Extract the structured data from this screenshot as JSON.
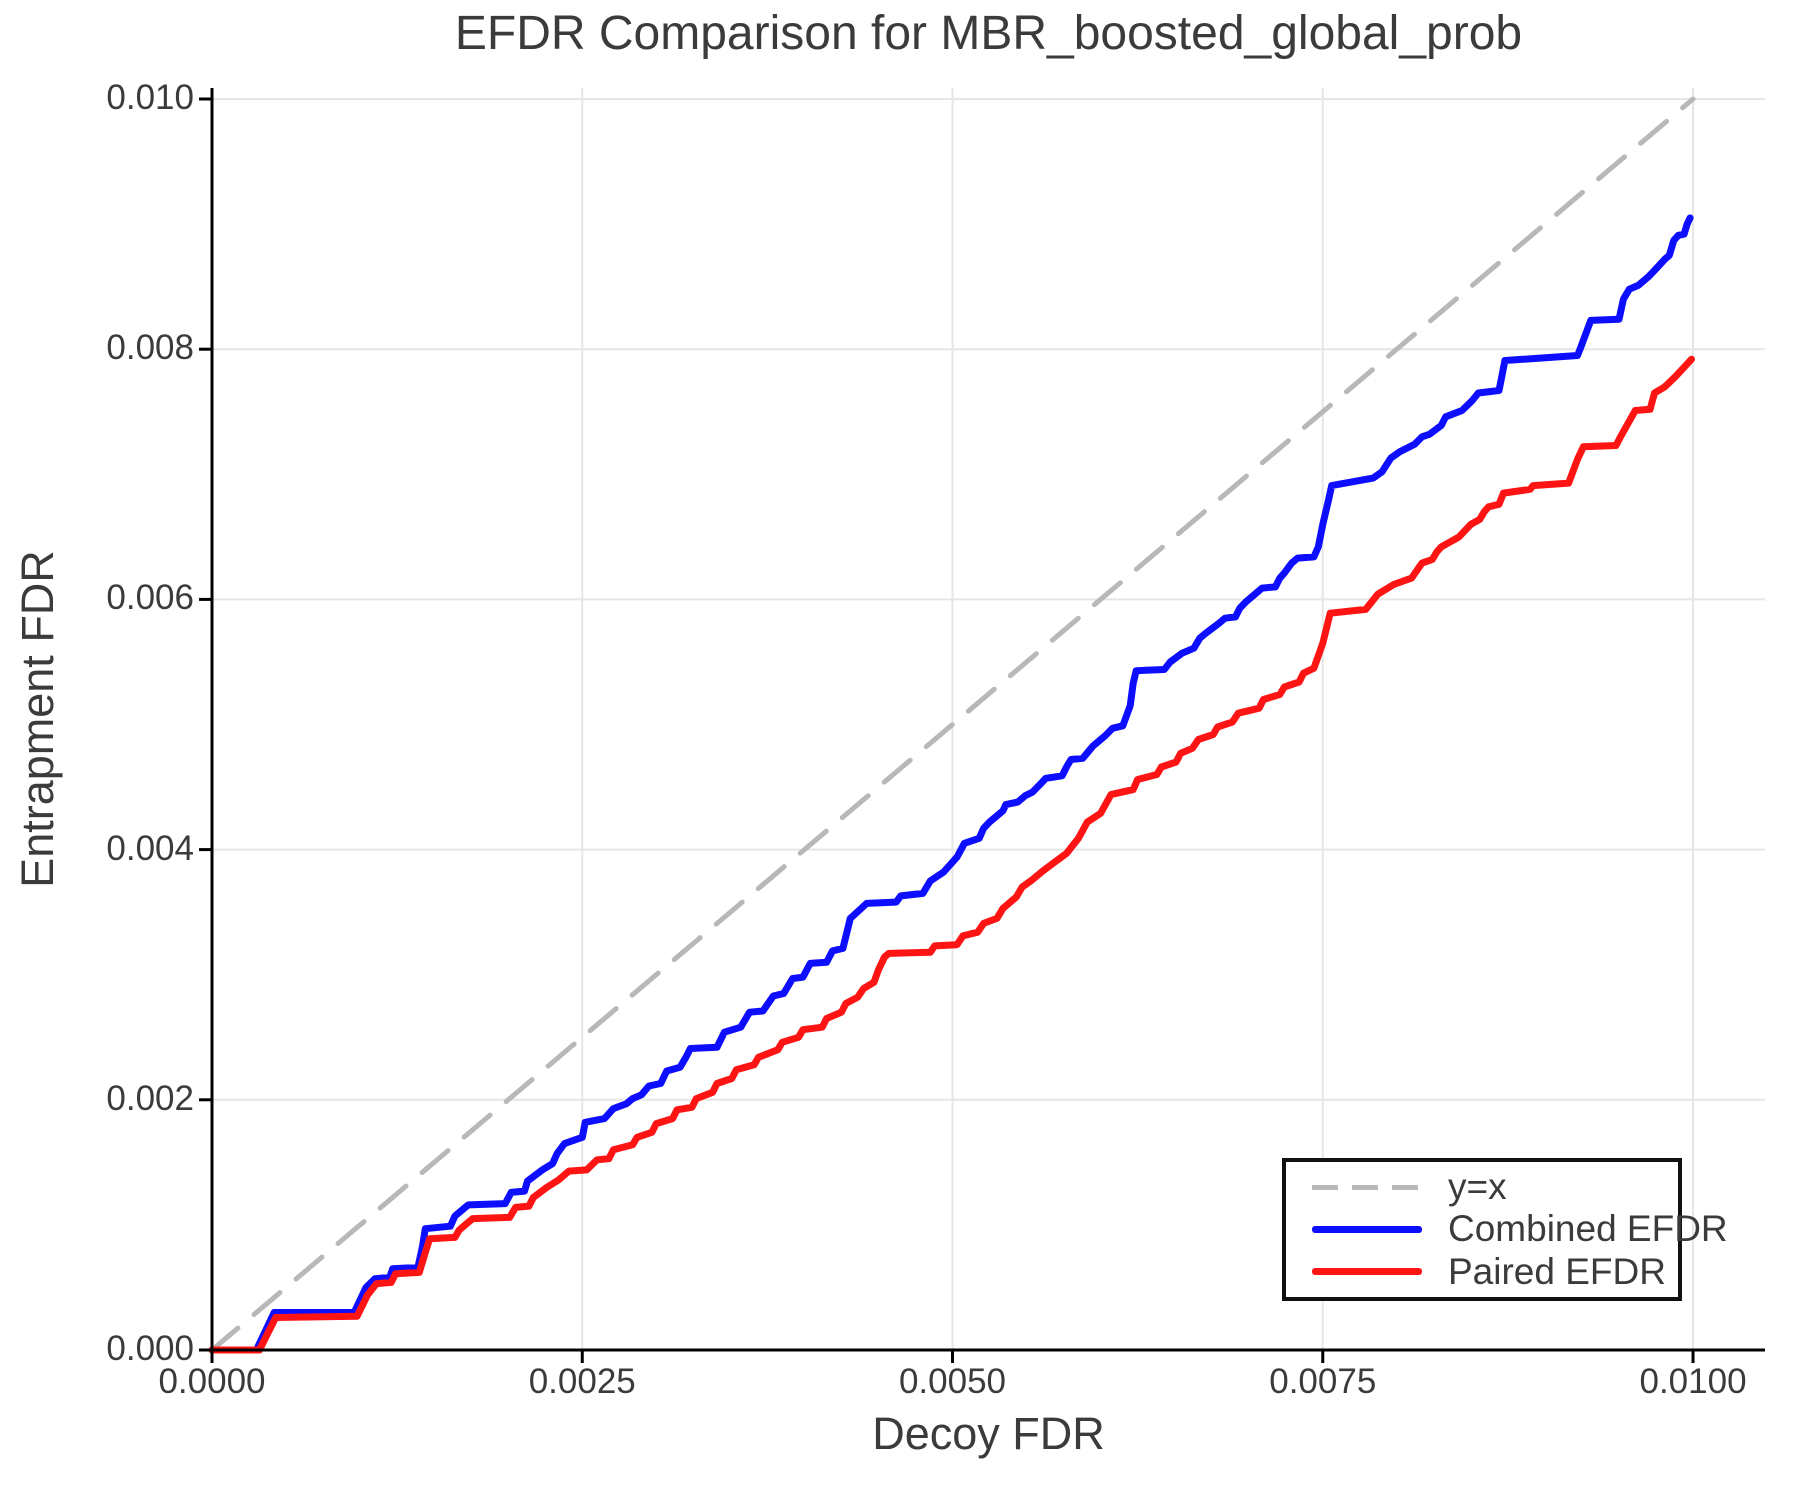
{
  "title": "EFDR Comparison for MBR_boosted_global_prob",
  "legend": {
    "items": [
      {
        "label": "y=x"
      },
      {
        "label": "Combined EFDR"
      },
      {
        "label": "Paired EFDR"
      }
    ]
  },
  "chart_data": {
    "type": "line",
    "title": "EFDR Comparison for MBR_boosted_global_prob",
    "xlabel": "Decoy FDR",
    "ylabel": "Entrapment FDR",
    "xlim": [
      0,
      0.010486
    ],
    "ylim": [
      0,
      0.010088
    ],
    "x_ticks": [
      0,
      0.0025,
      0.005,
      0.0075,
      0.01
    ],
    "x_tick_labels": [
      "0.0000",
      "0.0025",
      "0.0050",
      "0.0075",
      "0.0100"
    ],
    "y_ticks": [
      0,
      0.002,
      0.004,
      0.006,
      0.008,
      0.01
    ],
    "y_tick_labels": [
      "0.000",
      "0.002",
      "0.004",
      "0.006",
      "0.008",
      "0.010"
    ],
    "grid": true,
    "grid_color": "#e6e6e6",
    "spine_color": "#000000",
    "legend_position": "lower right",
    "points_scale": 0.0001,
    "series": [
      {
        "name": "y=x",
        "style": "dashed",
        "color": "#b8b8b8",
        "stroke_width": 5,
        "points": [
          [
            0,
            0
          ],
          [
            100,
            100
          ]
        ]
      },
      {
        "name": "Combined EFDR",
        "style": "solid",
        "color": "#0d0dff",
        "stroke_width": 7,
        "points": [
          [
            0,
            0
          ],
          [
            3,
            0
          ],
          [
            4.2,
            3
          ],
          [
            9.6,
            3
          ],
          [
            10.4,
            5
          ],
          [
            11,
            5.7
          ],
          [
            12,
            5.8
          ],
          [
            12.2,
            6.5
          ],
          [
            13.9,
            6.6
          ],
          [
            14.2,
            8.2
          ],
          [
            14.4,
            9.7
          ],
          [
            16.1,
            9.9
          ],
          [
            16.4,
            10.7
          ],
          [
            17.3,
            11.6
          ],
          [
            19.8,
            11.7
          ],
          [
            20.2,
            12.6
          ],
          [
            21.1,
            12.7
          ],
          [
            21.3,
            13.5
          ],
          [
            22.3,
            14.4
          ],
          [
            23,
            14.9
          ],
          [
            23.3,
            15.7
          ],
          [
            23.8,
            16.5
          ],
          [
            25,
            17
          ],
          [
            25.2,
            18.2
          ],
          [
            26.5,
            18.5
          ],
          [
            27.1,
            19.3
          ],
          [
            28,
            19.7
          ],
          [
            28.4,
            20.1
          ],
          [
            29,
            20.4
          ],
          [
            29.5,
            21.1
          ],
          [
            30.3,
            21.3
          ],
          [
            30.7,
            22.3
          ],
          [
            31.6,
            22.6
          ],
          [
            32,
            23.4
          ],
          [
            32.3,
            24.1
          ],
          [
            34.1,
            24.2
          ],
          [
            34.6,
            25.4
          ],
          [
            35.7,
            25.8
          ],
          [
            36.3,
            27
          ],
          [
            37.2,
            27.1
          ],
          [
            37.9,
            28.3
          ],
          [
            38.6,
            28.5
          ],
          [
            39.2,
            29.7
          ],
          [
            39.9,
            29.8
          ],
          [
            40.4,
            30.9
          ],
          [
            41.5,
            31
          ],
          [
            41.9,
            31.9
          ],
          [
            42.6,
            32.1
          ],
          [
            43.1,
            34.5
          ],
          [
            44.2,
            35.7
          ],
          [
            46.2,
            35.8
          ],
          [
            46.5,
            36.3
          ],
          [
            48,
            36.5
          ],
          [
            48.5,
            37.5
          ],
          [
            49.4,
            38.2
          ],
          [
            50.3,
            39.4
          ],
          [
            50.8,
            40.5
          ],
          [
            51.8,
            40.9
          ],
          [
            52.1,
            41.7
          ],
          [
            52.5,
            42.2
          ],
          [
            53.4,
            43.1
          ],
          [
            53.6,
            43.6
          ],
          [
            54.4,
            43.8
          ],
          [
            54.9,
            44.3
          ],
          [
            55.4,
            44.6
          ],
          [
            55.9,
            45.2
          ],
          [
            56.3,
            45.7
          ],
          [
            57.4,
            45.9
          ],
          [
            57.7,
            46.6
          ],
          [
            58,
            47.2
          ],
          [
            58.8,
            47.3
          ],
          [
            59.5,
            48.3
          ],
          [
            60.3,
            49.1
          ],
          [
            60.8,
            49.7
          ],
          [
            61.5,
            49.9
          ],
          [
            62,
            51.5
          ],
          [
            62.2,
            53.3
          ],
          [
            62.4,
            54.3
          ],
          [
            64.3,
            54.4
          ],
          [
            64.7,
            55
          ],
          [
            65.5,
            55.7
          ],
          [
            66.3,
            56.1
          ],
          [
            66.7,
            56.9
          ],
          [
            67.1,
            57.3
          ],
          [
            68,
            58.1
          ],
          [
            68.4,
            58.5
          ],
          [
            69.1,
            58.6
          ],
          [
            69.4,
            59.3
          ],
          [
            69.8,
            59.8
          ],
          [
            70.5,
            60.5
          ],
          [
            70.9,
            60.9
          ],
          [
            71.8,
            61
          ],
          [
            72.1,
            61.7
          ],
          [
            72.4,
            62.1
          ],
          [
            72.9,
            62.9
          ],
          [
            73.3,
            63.3
          ],
          [
            74.4,
            63.4
          ],
          [
            74.7,
            64.2
          ],
          [
            75,
            66
          ],
          [
            75.4,
            68
          ],
          [
            75.6,
            69.1
          ],
          [
            78.4,
            69.7
          ],
          [
            79,
            70.2
          ],
          [
            79.6,
            71.3
          ],
          [
            80.2,
            71.8
          ],
          [
            81.2,
            72.4
          ],
          [
            81.7,
            73
          ],
          [
            82.2,
            73.2
          ],
          [
            83,
            73.9
          ],
          [
            83.3,
            74.6
          ],
          [
            84.4,
            75.1
          ],
          [
            85.1,
            75.9
          ],
          [
            85.5,
            76.5
          ],
          [
            86.9,
            76.7
          ],
          [
            87.1,
            77.9
          ],
          [
            87.3,
            79.1
          ],
          [
            89.8,
            79.3
          ],
          [
            92.2,
            79.5
          ],
          [
            92.4,
            80.1
          ],
          [
            93.1,
            82.3
          ],
          [
            95,
            82.4
          ],
          [
            95.3,
            84
          ],
          [
            95.7,
            84.8
          ],
          [
            96.3,
            85.1
          ],
          [
            97,
            85.8
          ],
          [
            97.4,
            86.3
          ],
          [
            98.1,
            87.2
          ],
          [
            98.4,
            87.5
          ],
          [
            98.7,
            88.7
          ],
          [
            99,
            89.1
          ],
          [
            99.4,
            89.2
          ],
          [
            99.6,
            90
          ],
          [
            99.8,
            90.5
          ]
        ]
      },
      {
        "name": "Paired EFDR",
        "style": "solid",
        "color": "#ff1414",
        "stroke_width": 7,
        "points": [
          [
            0,
            0
          ],
          [
            3.2,
            0
          ],
          [
            4.3,
            2.6
          ],
          [
            9.8,
            2.7
          ],
          [
            10.5,
            4.4
          ],
          [
            11.1,
            5.3
          ],
          [
            12.1,
            5.4
          ],
          [
            12.4,
            6.1
          ],
          [
            14,
            6.2
          ],
          [
            14.4,
            7.8
          ],
          [
            14.7,
            8.9
          ],
          [
            16.4,
            9
          ],
          [
            16.7,
            9.6
          ],
          [
            17.6,
            10.5
          ],
          [
            20.1,
            10.6
          ],
          [
            20.5,
            11.4
          ],
          [
            21.4,
            11.5
          ],
          [
            21.7,
            12.2
          ],
          [
            22.6,
            13
          ],
          [
            23.4,
            13.6
          ],
          [
            24.1,
            14.3
          ],
          [
            25.3,
            14.4
          ],
          [
            26,
            15.2
          ],
          [
            26.8,
            15.3
          ],
          [
            27.1,
            16
          ],
          [
            28.4,
            16.4
          ],
          [
            28.7,
            17
          ],
          [
            29.7,
            17.4
          ],
          [
            30,
            18.1
          ],
          [
            31.1,
            18.5
          ],
          [
            31.4,
            19.2
          ],
          [
            32.4,
            19.4
          ],
          [
            32.7,
            20.1
          ],
          [
            33.8,
            20.6
          ],
          [
            34.1,
            21.3
          ],
          [
            35.1,
            21.7
          ],
          [
            35.4,
            22.4
          ],
          [
            36.6,
            22.8
          ],
          [
            36.9,
            23.4
          ],
          [
            38.2,
            24
          ],
          [
            38.5,
            24.6
          ],
          [
            39.6,
            25
          ],
          [
            39.9,
            25.6
          ],
          [
            41.2,
            25.8
          ],
          [
            41.5,
            26.5
          ],
          [
            42.5,
            27
          ],
          [
            42.8,
            27.7
          ],
          [
            43.6,
            28.2
          ],
          [
            44,
            28.9
          ],
          [
            44.7,
            29.4
          ],
          [
            45,
            30.4
          ],
          [
            45.4,
            31.4
          ],
          [
            45.7,
            31.7
          ],
          [
            48.5,
            31.8
          ],
          [
            48.8,
            32.3
          ],
          [
            50.3,
            32.4
          ],
          [
            50.7,
            33.1
          ],
          [
            51.7,
            33.4
          ],
          [
            52.1,
            34.1
          ],
          [
            53,
            34.5
          ],
          [
            53.4,
            35.3
          ],
          [
            54.3,
            36.2
          ],
          [
            54.7,
            37
          ],
          [
            55.4,
            37.6
          ],
          [
            56.1,
            38.3
          ],
          [
            56.9,
            39
          ],
          [
            57.7,
            39.7
          ],
          [
            58.5,
            40.9
          ],
          [
            59.1,
            42.2
          ],
          [
            60,
            42.9
          ],
          [
            60.7,
            44.4
          ],
          [
            62.2,
            44.8
          ],
          [
            62.5,
            45.6
          ],
          [
            63.8,
            46
          ],
          [
            64.1,
            46.6
          ],
          [
            65.1,
            47
          ],
          [
            65.4,
            47.7
          ],
          [
            66.2,
            48.1
          ],
          [
            66.6,
            48.8
          ],
          [
            67.6,
            49.2
          ],
          [
            67.9,
            49.8
          ],
          [
            68.9,
            50.2
          ],
          [
            69.3,
            50.9
          ],
          [
            70.7,
            51.3
          ],
          [
            71,
            52
          ],
          [
            72.1,
            52.4
          ],
          [
            72.4,
            53
          ],
          [
            73.4,
            53.4
          ],
          [
            73.7,
            54.1
          ],
          [
            74.4,
            54.5
          ],
          [
            75,
            56.5
          ],
          [
            75.5,
            58.9
          ],
          [
            77.9,
            59.2
          ],
          [
            78.7,
            60.4
          ],
          [
            79.8,
            61.2
          ],
          [
            81,
            61.7
          ],
          [
            81.4,
            62.4
          ],
          [
            81.7,
            62.9
          ],
          [
            82.4,
            63.2
          ],
          [
            82.7,
            63.8
          ],
          [
            83,
            64.2
          ],
          [
            84.2,
            65
          ],
          [
            85,
            66
          ],
          [
            85.6,
            66.4
          ],
          [
            85.9,
            67
          ],
          [
            86.2,
            67.4
          ],
          [
            86.9,
            67.6
          ],
          [
            87.2,
            68.5
          ],
          [
            89,
            68.8
          ],
          [
            89.2,
            69.1
          ],
          [
            91.6,
            69.3
          ],
          [
            92.2,
            71.2
          ],
          [
            92.6,
            72.2
          ],
          [
            94.8,
            72.3
          ],
          [
            95.1,
            73
          ],
          [
            96.1,
            75.1
          ],
          [
            97.1,
            75.2
          ],
          [
            97.4,
            76.5
          ],
          [
            98.1,
            77
          ],
          [
            98.8,
            77.8
          ],
          [
            99.9,
            79.2
          ]
        ]
      }
    ]
  }
}
